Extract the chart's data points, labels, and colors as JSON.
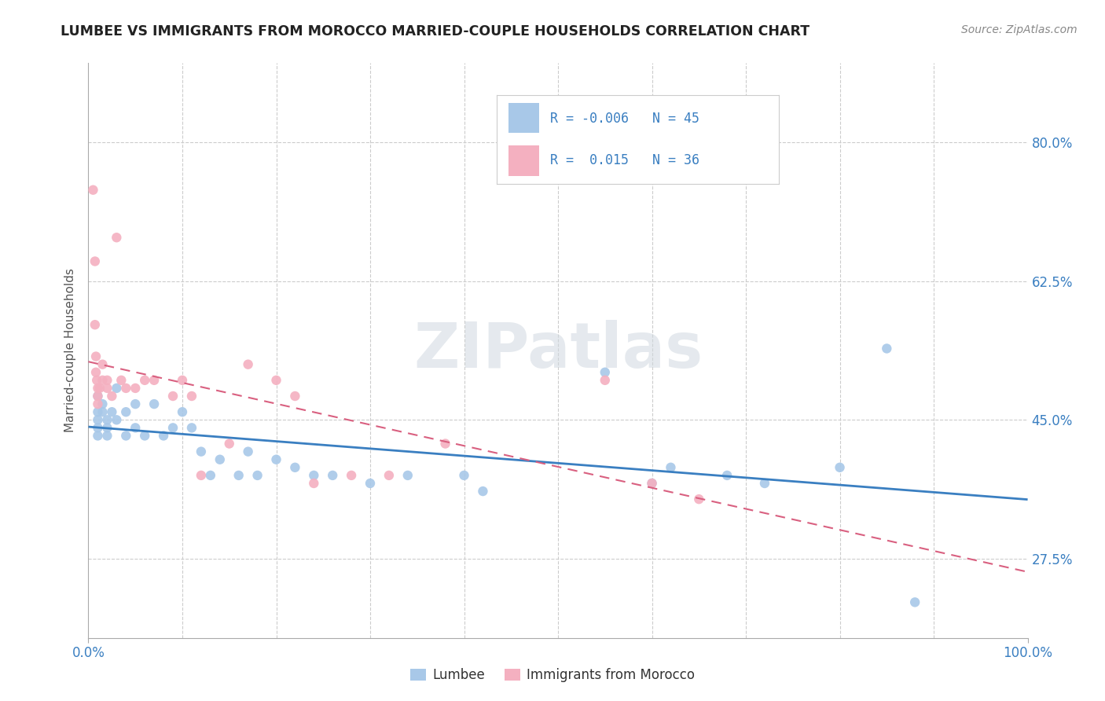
{
  "title": "LUMBEE VS IMMIGRANTS FROM MOROCCO MARRIED-COUPLE HOUSEHOLDS CORRELATION CHART",
  "source": "Source: ZipAtlas.com",
  "ylabel": "Married-couple Households",
  "R_lumbee": -0.006,
  "N_lumbee": 45,
  "R_morocco": 0.015,
  "N_morocco": 36,
  "lumbee_color": "#a8c8e8",
  "morocco_color": "#f4b0c0",
  "lumbee_line_color": "#3a7fc1",
  "morocco_line_color": "#d96080",
  "background_color": "#ffffff",
  "grid_color": "#cccccc",
  "watermark": "ZIPatlas",
  "xlim": [
    0.0,
    1.0
  ],
  "ylim": [
    0.175,
    0.9
  ],
  "yticks": [
    0.275,
    0.45,
    0.625,
    0.8
  ],
  "ytick_labels": [
    "27.5%",
    "45.0%",
    "62.5%",
    "80.0%"
  ],
  "lumbee_x": [
    0.01,
    0.01,
    0.01,
    0.01,
    0.01,
    0.015,
    0.015,
    0.02,
    0.02,
    0.02,
    0.025,
    0.03,
    0.03,
    0.04,
    0.04,
    0.05,
    0.05,
    0.06,
    0.07,
    0.08,
    0.09,
    0.1,
    0.11,
    0.12,
    0.13,
    0.14,
    0.16,
    0.17,
    0.18,
    0.2,
    0.22,
    0.24,
    0.26,
    0.3,
    0.34,
    0.4,
    0.42,
    0.55,
    0.6,
    0.62,
    0.68,
    0.72,
    0.8,
    0.85,
    0.88
  ],
  "lumbee_y": [
    0.48,
    0.46,
    0.45,
    0.44,
    0.43,
    0.47,
    0.46,
    0.45,
    0.44,
    0.43,
    0.46,
    0.49,
    0.45,
    0.46,
    0.43,
    0.47,
    0.44,
    0.43,
    0.47,
    0.43,
    0.44,
    0.46,
    0.44,
    0.41,
    0.38,
    0.4,
    0.38,
    0.41,
    0.38,
    0.4,
    0.39,
    0.38,
    0.38,
    0.37,
    0.38,
    0.38,
    0.36,
    0.51,
    0.37,
    0.39,
    0.38,
    0.37,
    0.39,
    0.54,
    0.22
  ],
  "morocco_x": [
    0.005,
    0.007,
    0.007,
    0.008,
    0.008,
    0.009,
    0.01,
    0.01,
    0.01,
    0.012,
    0.015,
    0.015,
    0.02,
    0.02,
    0.025,
    0.03,
    0.035,
    0.04,
    0.05,
    0.06,
    0.07,
    0.09,
    0.1,
    0.11,
    0.12,
    0.15,
    0.17,
    0.2,
    0.22,
    0.24,
    0.28,
    0.32,
    0.38,
    0.55,
    0.6,
    0.65
  ],
  "morocco_y": [
    0.74,
    0.65,
    0.57,
    0.53,
    0.51,
    0.5,
    0.49,
    0.48,
    0.47,
    0.49,
    0.52,
    0.5,
    0.5,
    0.49,
    0.48,
    0.68,
    0.5,
    0.49,
    0.49,
    0.5,
    0.5,
    0.48,
    0.5,
    0.48,
    0.38,
    0.42,
    0.52,
    0.5,
    0.48,
    0.37,
    0.38,
    0.38,
    0.42,
    0.5,
    0.37,
    0.35
  ]
}
